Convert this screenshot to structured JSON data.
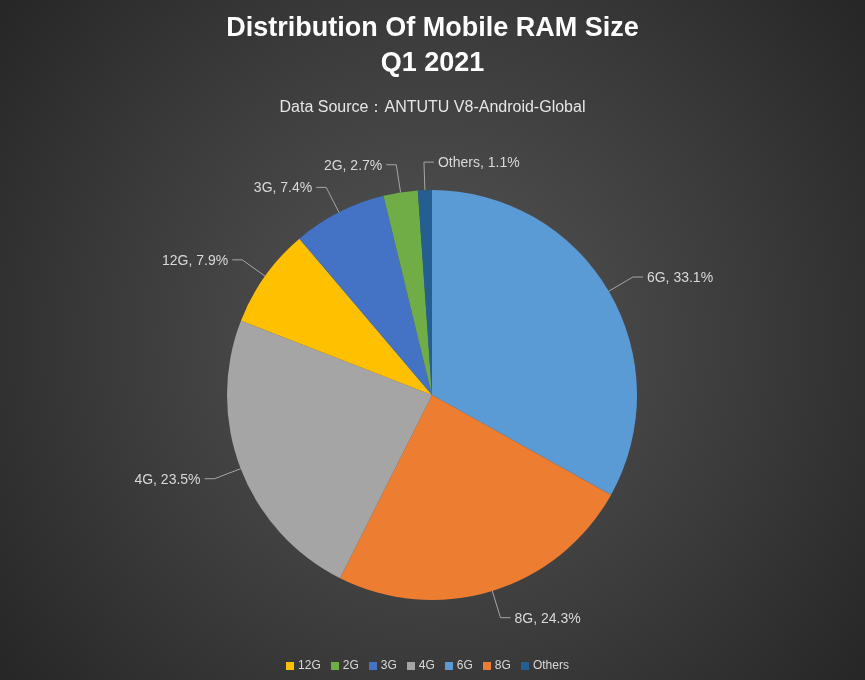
{
  "chart_data": {
    "type": "pie",
    "title": "Distribution Of Mobile RAM Size\nQ1 2021",
    "subtitle": "Data Source：ANTUTU V8-Android-Global",
    "categories": [
      "6G",
      "8G",
      "4G",
      "12G",
      "3G",
      "2G",
      "Others"
    ],
    "values": [
      33.1,
      24.3,
      23.5,
      7.9,
      7.4,
      2.7,
      1.1
    ],
    "value_labels": [
      "6G, 33.1%",
      "8G, 24.3%",
      "4G, 23.5%",
      "12G, 7.9%",
      "3G, 7.4%",
      "2G, 2.7%",
      "Others, 1.1%"
    ],
    "colors": [
      "#5b9bd5",
      "#ed7d31",
      "#a5a5a5",
      "#ffc000",
      "#4472c4",
      "#70ad47",
      "#255e91"
    ],
    "data_labels": true,
    "legend": "bottom"
  }
}
